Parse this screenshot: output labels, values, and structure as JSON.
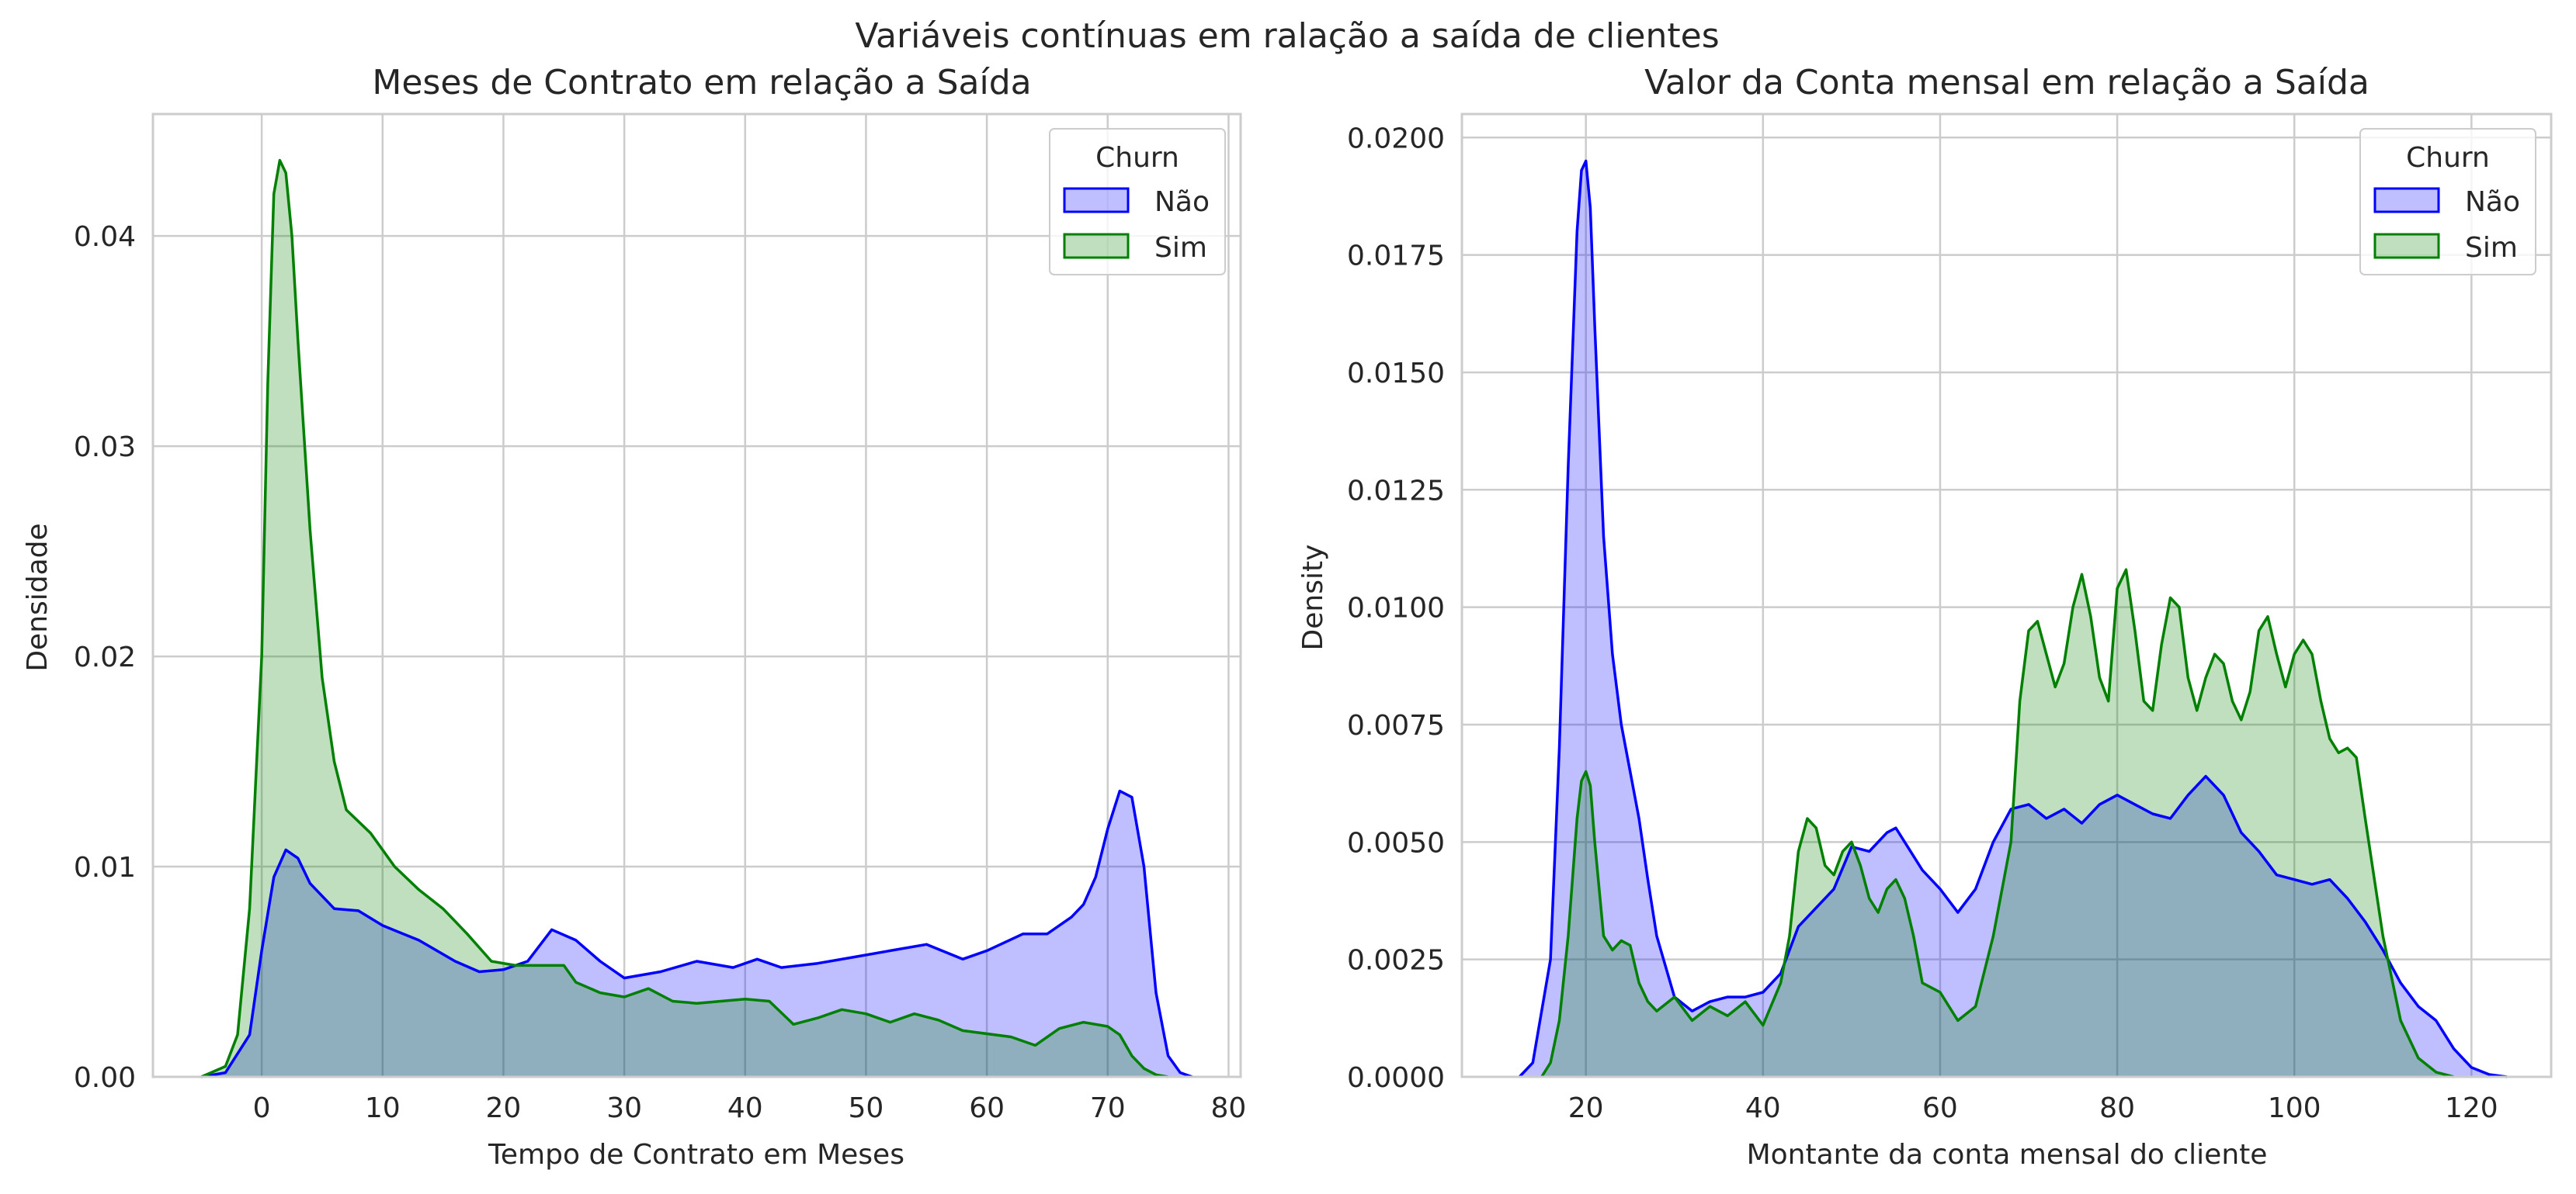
{
  "figure": {
    "suptitle": "Variáveis contínuas em ralação a saída de clientes"
  },
  "colors": {
    "nao_fill": "rgba(0,0,255,0.25)",
    "nao_line": "#0000ff",
    "sim_fill": "rgba(0,128,0,0.25)",
    "sim_line": "#008000",
    "grid": "#cccccc",
    "spine": "#cccccc"
  },
  "chart_data": [
    {
      "type": "area",
      "title": "Meses de Contrato em relação a Saída",
      "xlabel": "Tempo de Contrato em Meses",
      "ylabel": "Densidade",
      "xlim": [
        -9,
        81
      ],
      "ylim": [
        0,
        0.0458
      ],
      "xticks": [
        0,
        10,
        20,
        30,
        40,
        50,
        60,
        70,
        80
      ],
      "xtick_labels": [
        "0",
        "10",
        "20",
        "30",
        "40",
        "50",
        "60",
        "70",
        "80"
      ],
      "yticks": [
        0,
        0.01,
        0.02,
        0.03,
        0.04
      ],
      "ytick_labels": [
        "0.00",
        "0.01",
        "0.02",
        "0.03",
        "0.04"
      ],
      "grid": true,
      "legend": {
        "title": "Churn",
        "position": "top-right",
        "entries": [
          "Não",
          "Sim"
        ]
      },
      "series": [
        {
          "name": "Não",
          "color": "#0000ff",
          "x": [
            -5,
            -3,
            -1,
            0,
            1,
            2,
            3,
            4,
            6,
            8,
            10,
            13,
            16,
            18,
            20,
            22,
            24,
            26,
            28,
            30,
            33,
            36,
            39,
            41,
            43,
            46,
            49,
            52,
            55,
            58,
            60,
            63,
            65,
            67,
            68,
            69,
            70,
            71,
            72,
            73,
            74,
            75,
            76,
            77
          ],
          "y": [
            0,
            0.0002,
            0.002,
            0.006,
            0.0095,
            0.0108,
            0.0104,
            0.0092,
            0.008,
            0.0079,
            0.0072,
            0.0065,
            0.0055,
            0.005,
            0.0051,
            0.0055,
            0.007,
            0.0065,
            0.0055,
            0.0047,
            0.005,
            0.0055,
            0.0052,
            0.0056,
            0.0052,
            0.0054,
            0.0057,
            0.006,
            0.0063,
            0.0056,
            0.006,
            0.0068,
            0.0068,
            0.0076,
            0.0082,
            0.0095,
            0.0118,
            0.0136,
            0.0133,
            0.01,
            0.004,
            0.001,
            0.0002,
            0
          ]
        },
        {
          "name": "Sim",
          "color": "#008000",
          "x": [
            -5,
            -3,
            -2,
            -1,
            0,
            0.5,
            1,
            1.5,
            2,
            2.5,
            3,
            4,
            5,
            6,
            7,
            9,
            11,
            13,
            15,
            17,
            19,
            21,
            23,
            25,
            26,
            28,
            30,
            32,
            34,
            36,
            40,
            42,
            44,
            46,
            48,
            50,
            52,
            54,
            56,
            58,
            62,
            64,
            66,
            68,
            70,
            71,
            72,
            73,
            74,
            75
          ],
          "y": [
            0,
            0.0005,
            0.002,
            0.008,
            0.02,
            0.033,
            0.042,
            0.0436,
            0.043,
            0.04,
            0.035,
            0.026,
            0.019,
            0.015,
            0.0127,
            0.0116,
            0.01,
            0.0089,
            0.008,
            0.0068,
            0.0055,
            0.0053,
            0.0053,
            0.0053,
            0.0045,
            0.004,
            0.0038,
            0.0042,
            0.0036,
            0.0035,
            0.0037,
            0.0036,
            0.0025,
            0.0028,
            0.0032,
            0.003,
            0.0026,
            0.003,
            0.0027,
            0.0022,
            0.0019,
            0.0015,
            0.0023,
            0.0026,
            0.0024,
            0.002,
            0.001,
            0.0004,
            0.0001,
            0
          ]
        }
      ]
    },
    {
      "type": "area",
      "title": "Valor da Conta mensal em relação a Saída",
      "xlabel": "Montante da conta mensal do cliente",
      "ylabel": "Density",
      "xlim": [
        6,
        129
      ],
      "ylim": [
        0,
        0.0205
      ],
      "xticks": [
        20,
        40,
        60,
        80,
        100,
        120
      ],
      "xtick_labels": [
        "20",
        "40",
        "60",
        "80",
        "100",
        "120"
      ],
      "yticks": [
        0,
        0.0025,
        0.005,
        0.0075,
        0.01,
        0.0125,
        0.015,
        0.0175,
        0.02
      ],
      "ytick_labels": [
        "0.0000",
        "0.0025",
        "0.0050",
        "0.0075",
        "0.0100",
        "0.0125",
        "0.0150",
        "0.0175",
        "0.0200"
      ],
      "grid": true,
      "legend": {
        "title": "Churn",
        "position": "top-right",
        "entries": [
          "Não",
          "Sim"
        ]
      },
      "series": [
        {
          "name": "Não",
          "color": "#0000ff",
          "x": [
            12.5,
            14,
            16,
            17,
            18,
            19,
            19.5,
            20,
            20.5,
            21,
            22,
            23,
            24,
            25,
            26,
            27,
            28,
            30,
            32,
            34,
            36,
            38,
            40,
            42,
            44,
            46,
            48,
            50,
            52,
            54,
            55,
            56,
            58,
            60,
            62,
            64,
            66,
            68,
            70,
            72,
            74,
            76,
            78,
            80,
            82,
            84,
            86,
            88,
            90,
            92,
            94,
            96,
            98,
            100,
            102,
            104,
            106,
            108,
            110,
            112,
            114,
            116,
            118,
            120,
            122,
            124
          ],
          "y": [
            0,
            0.0003,
            0.0025,
            0.007,
            0.013,
            0.018,
            0.0193,
            0.0195,
            0.0185,
            0.016,
            0.0115,
            0.009,
            0.0075,
            0.0065,
            0.0055,
            0.0042,
            0.003,
            0.0017,
            0.0014,
            0.0016,
            0.0017,
            0.0017,
            0.0018,
            0.0022,
            0.0032,
            0.0036,
            0.004,
            0.0049,
            0.0048,
            0.0052,
            0.0053,
            0.005,
            0.0044,
            0.004,
            0.0035,
            0.004,
            0.005,
            0.0057,
            0.0058,
            0.0055,
            0.0057,
            0.0054,
            0.0058,
            0.006,
            0.0058,
            0.0056,
            0.0055,
            0.006,
            0.0064,
            0.006,
            0.0052,
            0.0048,
            0.0043,
            0.0042,
            0.0041,
            0.0042,
            0.0038,
            0.0033,
            0.0027,
            0.002,
            0.0015,
            0.0012,
            0.0006,
            0.0002,
            5e-05,
            0
          ]
        },
        {
          "name": "Sim",
          "color": "#008000",
          "x": [
            15,
            16,
            17,
            18,
            19,
            19.5,
            20,
            20.5,
            21,
            22,
            23,
            24,
            25,
            26,
            27,
            28,
            30,
            32,
            34,
            36,
            38,
            40,
            42,
            43,
            44,
            45,
            46,
            47,
            48,
            49,
            50,
            51,
            52,
            53,
            54,
            55,
            56,
            57,
            58,
            60,
            62,
            64,
            66,
            68,
            69,
            70,
            71,
            72,
            73,
            74,
            75,
            76,
            77,
            78,
            79,
            80,
            81,
            82,
            83,
            84,
            85,
            86,
            87,
            88,
            89,
            90,
            91,
            92,
            93,
            94,
            95,
            96,
            97,
            98,
            99,
            100,
            101,
            102,
            103,
            104,
            105,
            106,
            107,
            108,
            110,
            112,
            114,
            116,
            118
          ],
          "y": [
            0,
            0.0003,
            0.0012,
            0.003,
            0.0055,
            0.0063,
            0.0065,
            0.0062,
            0.005,
            0.003,
            0.0027,
            0.0029,
            0.0028,
            0.002,
            0.0016,
            0.0014,
            0.0017,
            0.0012,
            0.0015,
            0.0013,
            0.0016,
            0.0011,
            0.002,
            0.003,
            0.0048,
            0.0055,
            0.0053,
            0.0045,
            0.0043,
            0.0048,
            0.005,
            0.0045,
            0.0038,
            0.0035,
            0.004,
            0.0042,
            0.0038,
            0.003,
            0.002,
            0.0018,
            0.0012,
            0.0015,
            0.003,
            0.005,
            0.008,
            0.0095,
            0.0097,
            0.009,
            0.0083,
            0.0088,
            0.01,
            0.0107,
            0.0098,
            0.0085,
            0.008,
            0.0104,
            0.0108,
            0.0095,
            0.008,
            0.0078,
            0.0092,
            0.0102,
            0.01,
            0.0085,
            0.0078,
            0.0085,
            0.009,
            0.0088,
            0.008,
            0.0076,
            0.0082,
            0.0095,
            0.0098,
            0.009,
            0.0083,
            0.009,
            0.0093,
            0.009,
            0.008,
            0.0072,
            0.0069,
            0.007,
            0.0068,
            0.0055,
            0.003,
            0.0012,
            0.0004,
            0.0001,
            0
          ]
        }
      ]
    }
  ]
}
